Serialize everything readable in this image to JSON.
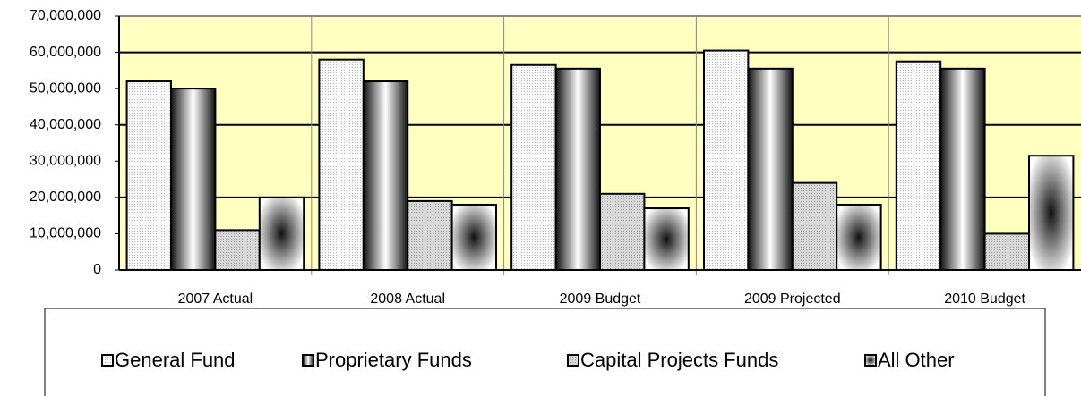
{
  "chart_data": {
    "type": "bar",
    "categories": [
      "2007 Actual",
      "2008 Actual",
      "2009 Budget",
      "2009 Projected",
      "2010 Budget"
    ],
    "series": [
      {
        "name": "General Fund",
        "color": "#f2f2f2",
        "values": [
          52000000,
          58000000,
          56500000,
          60500000,
          57500000
        ]
      },
      {
        "name": "Proprietary Funds",
        "color": "#1a1a1a",
        "values": [
          50000000,
          52000000,
          55500000,
          55500000,
          55500000
        ]
      },
      {
        "name": "Capital Projects Funds",
        "color": "#cfcfcf",
        "values": [
          11000000,
          19000000,
          21000000,
          24000000,
          10000000
        ]
      },
      {
        "name": "All Other",
        "color": "#222222",
        "values": [
          20000000,
          18000000,
          17000000,
          18000000,
          31500000
        ]
      }
    ],
    "ylim": [
      0,
      70000000
    ],
    "yticks": [
      0,
      {
        "value": 10000000,
        "label": "10,000,000"
      },
      {
        "value": 20000000,
        "label": "20,000,000"
      },
      {
        "value": 30000000,
        "label": "30,000,000"
      },
      {
        "value": 40000000,
        "label": "40,000,000"
      },
      {
        "value": 50000000,
        "label": "50,000,000"
      },
      {
        "value": 60000000,
        "label": "60,000,000"
      },
      {
        "value": 70000000,
        "label": "70,000,000"
      }
    ],
    "grid": true,
    "legend": "bottom"
  }
}
